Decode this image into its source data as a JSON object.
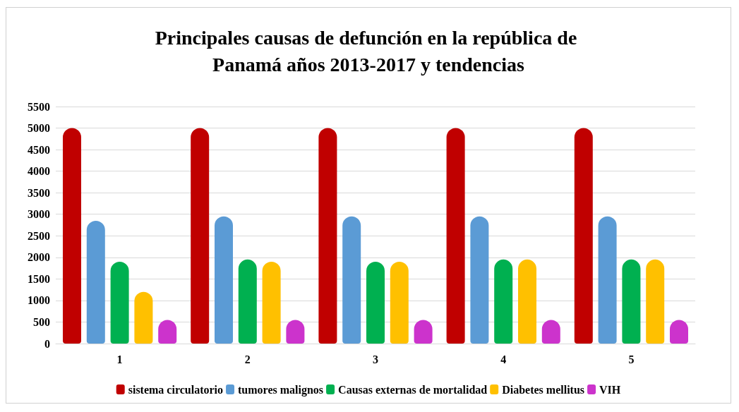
{
  "chart_data": {
    "type": "bar",
    "title": "Principales causas de defunción en la república de Panamá años 2013-2017 y tendencias",
    "categories": [
      "1",
      "2",
      "3",
      "4",
      "5"
    ],
    "series": [
      {
        "name": "sistema circulatorio",
        "color": "#c00000",
        "values": [
          5000,
          5000,
          5000,
          5000,
          5000
        ]
      },
      {
        "name": "tumores malignos",
        "color": "#5b9bd5",
        "values": [
          2850,
          2950,
          2950,
          2950,
          2950
        ]
      },
      {
        "name": "Causas externas de mortalidad",
        "color": "#00b050",
        "values": [
          1900,
          1950,
          1900,
          1950,
          1950
        ]
      },
      {
        "name": "Diabetes mellitus",
        "color": "#ffc000",
        "values": [
          1200,
          1900,
          1900,
          1950,
          1950
        ]
      },
      {
        "name": "VIH",
        "color": "#cc33cc",
        "values": [
          550,
          550,
          550,
          550,
          550
        ]
      }
    ],
    "ylim": [
      0,
      5500
    ],
    "yticks": [
      0,
      500,
      1000,
      1500,
      2000,
      2500,
      3000,
      3500,
      4000,
      4500,
      5000,
      5500
    ],
    "grid": "y",
    "legend": "bottom"
  }
}
